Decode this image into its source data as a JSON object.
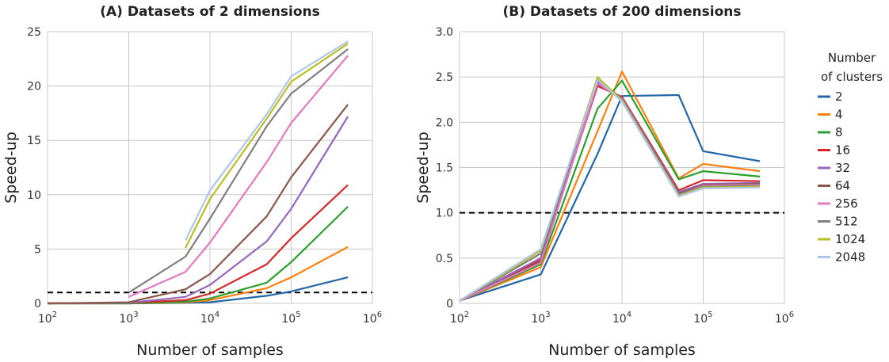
{
  "chart_data": [
    {
      "type": "line",
      "title": "(A) Datasets of 2 dimensions",
      "xlabel": "Number of samples",
      "ylabel": "Speed-up",
      "xscale": "log",
      "xlim": [
        100,
        1000000
      ],
      "ylim": [
        0,
        25
      ],
      "yticks": [
        "0",
        "5",
        "10",
        "15",
        "20",
        "25"
      ],
      "xticks": [
        {
          "base": "10",
          "exp": "2"
        },
        {
          "base": "10",
          "exp": "3"
        },
        {
          "base": "10",
          "exp": "4"
        },
        {
          "base": "10",
          "exp": "5"
        },
        {
          "base": "10",
          "exp": "6"
        }
      ],
      "reference_line": 1.0,
      "grid": true,
      "series": [
        {
          "name": "2",
          "color": "#2166a8",
          "points": [
            [
              100,
              0
            ],
            [
              1000,
              0
            ],
            [
              5000,
              0.05
            ],
            [
              10000,
              0.1
            ],
            [
              50000,
              0.7
            ],
            [
              100000,
              1.1
            ],
            [
              500000,
              2.4
            ]
          ]
        },
        {
          "name": "4",
          "color": "#ff7f0e",
          "points": [
            [
              100,
              0
            ],
            [
              1000,
              0
            ],
            [
              5000,
              0.1
            ],
            [
              10000,
              0.3
            ],
            [
              50000,
              1.4
            ],
            [
              100000,
              2.4
            ],
            [
              500000,
              5.2
            ]
          ]
        },
        {
          "name": "8",
          "color": "#2ca02c",
          "points": [
            [
              100,
              0
            ],
            [
              1000,
              0
            ],
            [
              5000,
              0.15
            ],
            [
              10000,
              0.45
            ],
            [
              50000,
              1.9
            ],
            [
              100000,
              3.8
            ],
            [
              500000,
              8.9
            ]
          ]
        },
        {
          "name": "16",
          "color": "#d62728",
          "points": [
            [
              100,
              0
            ],
            [
              1000,
              0.05
            ],
            [
              5000,
              0.3
            ],
            [
              10000,
              0.9
            ],
            [
              50000,
              3.6
            ],
            [
              100000,
              6
            ],
            [
              500000,
              10.9
            ]
          ]
        },
        {
          "name": "32",
          "color": "#9467bd",
          "points": [
            [
              100,
              0
            ],
            [
              1000,
              0.05
            ],
            [
              5000,
              0.6
            ],
            [
              10000,
              1.7
            ],
            [
              50000,
              5.7
            ],
            [
              100000,
              8.7
            ],
            [
              500000,
              17.2
            ]
          ]
        },
        {
          "name": "64",
          "color": "#8c564b",
          "points": [
            [
              100,
              0
            ],
            [
              1000,
              0.1
            ],
            [
              5000,
              1.3
            ],
            [
              10000,
              2.7
            ],
            [
              50000,
              8
            ],
            [
              100000,
              11.6
            ],
            [
              500000,
              18.3
            ]
          ]
        },
        {
          "name": "256",
          "color": "#e377c2",
          "points": [
            [
              1000,
              0.6
            ],
            [
              5000,
              2.9
            ],
            [
              10000,
              5.6
            ],
            [
              50000,
              13
            ],
            [
              100000,
              16.6
            ],
            [
              500000,
              22.8
            ]
          ]
        },
        {
          "name": "512",
          "color": "#7f7f7f",
          "points": [
            [
              1000,
              1
            ],
            [
              5000,
              4.3
            ],
            [
              10000,
              7.8
            ],
            [
              50000,
              16.3
            ],
            [
              100000,
              19.3
            ],
            [
              500000,
              23.4
            ]
          ]
        },
        {
          "name": "1024",
          "color": "#bcbd22",
          "points": [
            [
              5000,
              5.1
            ],
            [
              10000,
              9.6
            ],
            [
              50000,
              17
            ],
            [
              100000,
              20.4
            ],
            [
              500000,
              23.9
            ]
          ]
        },
        {
          "name": "2048",
          "color": "#aec7e8",
          "points": [
            [
              5000,
              5.8
            ],
            [
              10000,
              10.4
            ],
            [
              50000,
              17.4
            ],
            [
              100000,
              20.9
            ],
            [
              500000,
              24.1
            ]
          ]
        }
      ]
    },
    {
      "type": "line",
      "title": "(B) Datasets of 200 dimensions",
      "xlabel": "Number of samples",
      "ylabel": "Speed-up",
      "xscale": "log",
      "xlim": [
        100,
        1000000
      ],
      "ylim": [
        0,
        3
      ],
      "yticks": [
        "0",
        "0.5",
        "1.0",
        "1.5",
        "2.0",
        "2.5",
        "3.0"
      ],
      "xticks": [
        {
          "base": "10",
          "exp": "2"
        },
        {
          "base": "10",
          "exp": "3"
        },
        {
          "base": "10",
          "exp": "4"
        },
        {
          "base": "10",
          "exp": "5"
        },
        {
          "base": "10",
          "exp": "6"
        }
      ],
      "reference_line": 1.0,
      "grid": true,
      "series": [
        {
          "name": "2",
          "color": "#2166a8",
          "points": [
            [
              100,
              0.03
            ],
            [
              1000,
              0.32
            ],
            [
              5000,
              1.65
            ],
            [
              10000,
              2.29
            ],
            [
              50000,
              2.3
            ],
            [
              100000,
              1.68
            ],
            [
              500000,
              1.57
            ]
          ]
        },
        {
          "name": "4",
          "color": "#ff7f0e",
          "points": [
            [
              100,
              0.03
            ],
            [
              1000,
              0.4
            ],
            [
              5000,
              1.9
            ],
            [
              10000,
              2.56
            ],
            [
              50000,
              1.38
            ],
            [
              100000,
              1.54
            ],
            [
              500000,
              1.46
            ]
          ]
        },
        {
          "name": "8",
          "color": "#2ca02c",
          "points": [
            [
              100,
              0.03
            ],
            [
              1000,
              0.43
            ],
            [
              5000,
              2.15
            ],
            [
              10000,
              2.46
            ],
            [
              50000,
              1.37
            ],
            [
              100000,
              1.46
            ],
            [
              500000,
              1.4
            ]
          ]
        },
        {
          "name": "16",
          "color": "#d62728",
          "points": [
            [
              100,
              0.03
            ],
            [
              1000,
              0.48
            ],
            [
              5000,
              2.4
            ],
            [
              10000,
              2.28
            ],
            [
              50000,
              1.25
            ],
            [
              100000,
              1.36
            ],
            [
              500000,
              1.35
            ]
          ]
        },
        {
          "name": "32",
          "color": "#9467bd",
          "points": [
            [
              100,
              0.03
            ],
            [
              1000,
              0.5
            ],
            [
              5000,
              2.45
            ],
            [
              10000,
              2.27
            ],
            [
              50000,
              1.23
            ],
            [
              100000,
              1.32
            ],
            [
              500000,
              1.33
            ]
          ]
        },
        {
          "name": "64",
          "color": "#8c564b",
          "points": [
            [
              100,
              0.03
            ],
            [
              1000,
              0.46
            ],
            [
              5000,
              2.42
            ],
            [
              10000,
              2.27
            ],
            [
              50000,
              1.21
            ],
            [
              100000,
              1.31
            ],
            [
              500000,
              1.32
            ]
          ]
        },
        {
          "name": "256",
          "color": "#e377c2",
          "points": [
            [
              100,
              0.03
            ],
            [
              1000,
              0.45
            ],
            [
              5000,
              2.43
            ],
            [
              10000,
              2.26
            ],
            [
              50000,
              1.2
            ],
            [
              100000,
              1.3
            ],
            [
              500000,
              1.31
            ]
          ]
        },
        {
          "name": "512",
          "color": "#7f7f7f",
          "points": [
            [
              100,
              0.03
            ],
            [
              1000,
              0.55
            ],
            [
              5000,
              2.48
            ],
            [
              10000,
              2.25
            ],
            [
              50000,
              1.2
            ],
            [
              100000,
              1.29
            ],
            [
              500000,
              1.3
            ]
          ]
        },
        {
          "name": "1024",
          "color": "#bcbd22",
          "points": [
            [
              100,
              0.03
            ],
            [
              1000,
              0.58
            ],
            [
              5000,
              2.5
            ],
            [
              10000,
              2.24
            ],
            [
              50000,
              1.19
            ],
            [
              100000,
              1.28
            ],
            [
              500000,
              1.29
            ]
          ]
        },
        {
          "name": "2048",
          "color": "#aec7e8",
          "points": [
            [
              100,
              0.03
            ],
            [
              1000,
              0.6
            ],
            [
              5000,
              2.47
            ],
            [
              10000,
              2.23
            ],
            [
              50000,
              1.18
            ],
            [
              100000,
              1.27
            ],
            [
              500000,
              1.28
            ]
          ]
        }
      ]
    }
  ],
  "legend": {
    "title_line1": "Number",
    "title_line2": "of clusters",
    "placement": "right"
  }
}
